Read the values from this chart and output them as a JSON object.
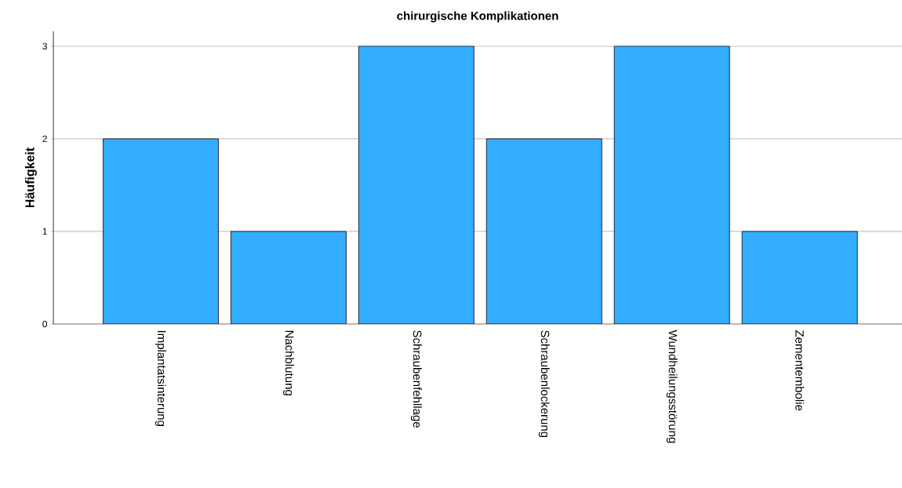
{
  "chart_data": {
    "type": "bar",
    "title": "chirurgische Komplikationen",
    "ylabel": "Häufigkeit",
    "categories": [
      "Implantatsinterung",
      "Nachblutung",
      "Schraubenfehllage",
      "Schraubenlockerung",
      "Wundheilungsstörung",
      "Zementembolie"
    ],
    "values": [
      2,
      1,
      3,
      2,
      3,
      1
    ],
    "color": "#33adff",
    "ylim": [
      0,
      3.16
    ],
    "yticks": [
      0,
      1,
      2,
      3
    ],
    "grid": "y"
  }
}
